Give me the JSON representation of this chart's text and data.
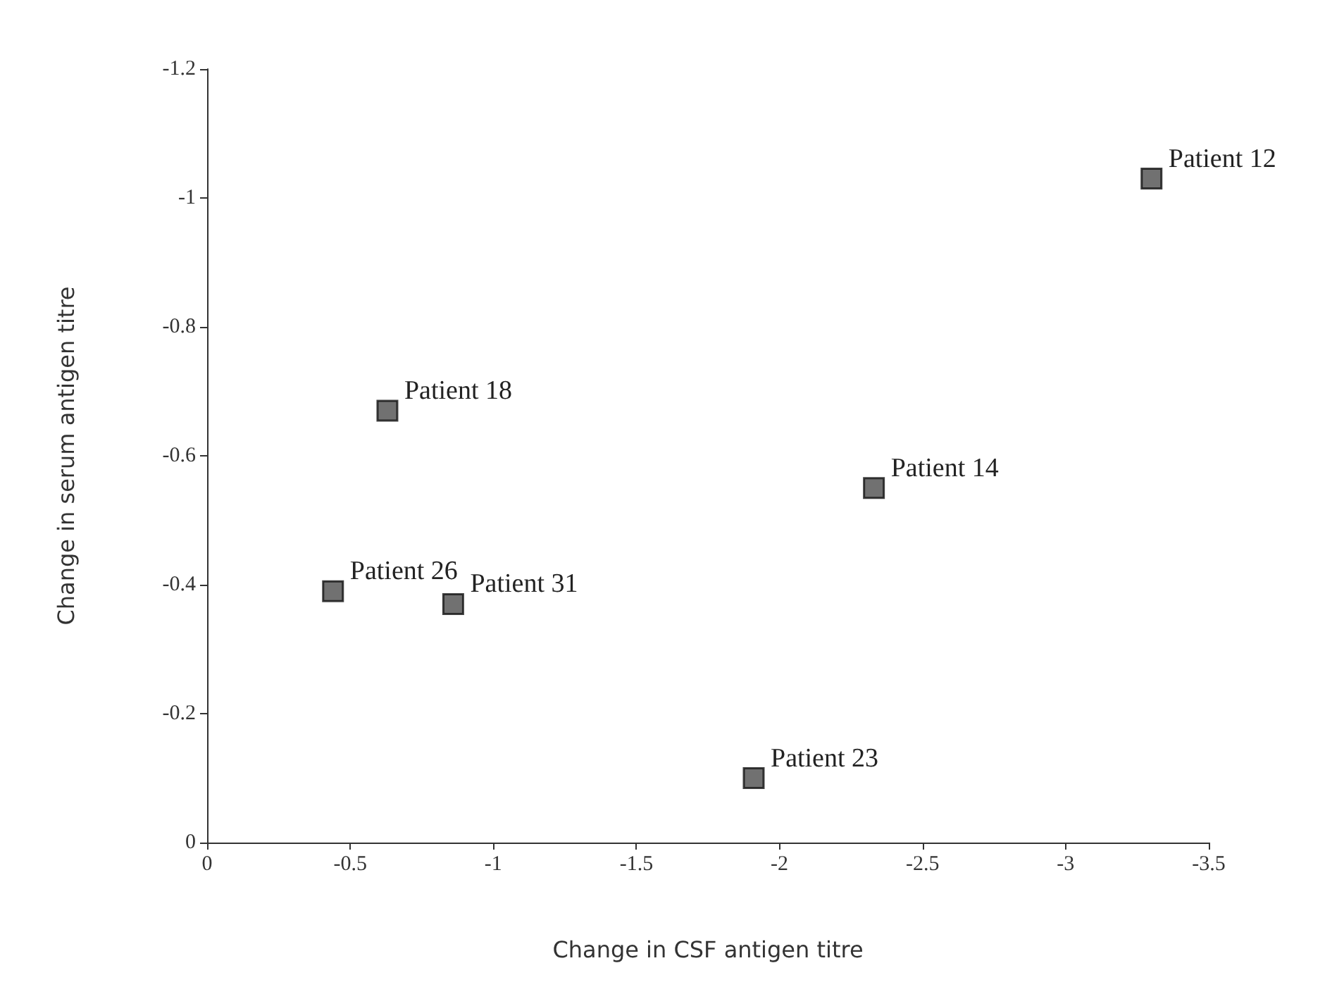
{
  "chart_data": {
    "type": "scatter",
    "xlabel": "Change in CSF antigen titre",
    "ylabel": "Change in serum antigen titre",
    "x": [
      -3.3,
      -0.63,
      -2.33,
      -0.44,
      -0.86,
      -1.91
    ],
    "values": [
      -1.03,
      -0.67,
      -0.55,
      -0.39,
      -0.37,
      -0.1
    ],
    "color": "#4d4d4d",
    "marker": "square",
    "grid": false,
    "xlim": [
      0,
      -3.5
    ],
    "xticks": [
      0,
      -0.5,
      -1,
      -1.5,
      -2,
      -2.5,
      -3,
      -3.5
    ],
    "ylim": [
      0,
      -1.2
    ],
    "yticks": [
      0,
      -0.2,
      -0.4,
      -0.6,
      -0.8,
      -1,
      -1.2
    ],
    "annotations": [
      {
        "text": "Patient 12",
        "x": -3.3,
        "y": -1.03
      },
      {
        "text": "Patient 18",
        "x": -0.63,
        "y": -0.67
      },
      {
        "text": "Patient 14",
        "x": -2.33,
        "y": -0.55
      },
      {
        "text": "Patient 26",
        "x": -0.44,
        "y": -0.39
      },
      {
        "text": "Patient 31",
        "x": -0.86,
        "y": -0.37
      },
      {
        "text": "Patient 23",
        "x": -1.91,
        "y": -0.1
      }
    ]
  }
}
